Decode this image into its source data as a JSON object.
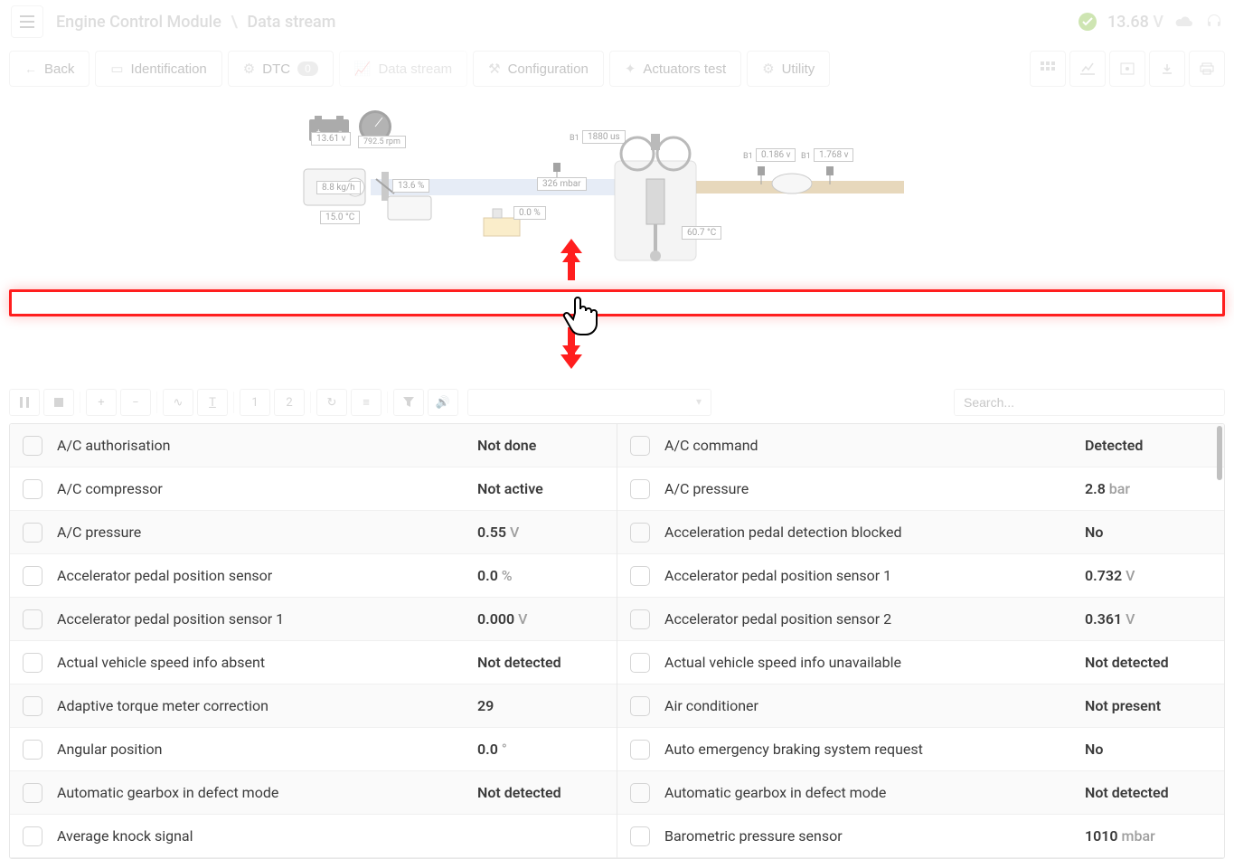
{
  "header": {
    "breadcrumb_main": "Engine Control Module",
    "breadcrumb_sub": "Data stream",
    "voltage_value": "13.68",
    "voltage_unit": "V"
  },
  "nav": {
    "back": "Back",
    "identification": "Identification",
    "dtc": "DTC",
    "dtc_count": "0",
    "data_stream": "Data stream",
    "configuration": "Configuration",
    "actuators": "Actuators test",
    "utility": "Utility"
  },
  "diagram": {
    "battery_v": "13.61 v",
    "rpm": "792.5 rpm",
    "maf": "8.8 kg/h",
    "throttle": "13.6 %",
    "iat": "15.0 °C",
    "map": "326 mbar",
    "fuel_trim": "0.0 %",
    "inj_b1_prefix": "B1",
    "inj_time": "1880 us",
    "coolant": "60.7 °C",
    "o2_b1_prefix": "B1",
    "o2_1": "0.186 v",
    "o2_b1_2_prefix": "B1",
    "o2_2": "1.768 v"
  },
  "toolbar": {
    "search_placeholder": "Search...",
    "btn_1": "1",
    "btn_2": "2"
  },
  "table": {
    "left": [
      {
        "label": "A/C authorisation",
        "value": "Not done",
        "unit": ""
      },
      {
        "label": "A/C compressor",
        "value": "Not active",
        "unit": ""
      },
      {
        "label": "A/C pressure",
        "value": "0.55",
        "unit": "V"
      },
      {
        "label": "Accelerator pedal position sensor",
        "value": "0.0",
        "unit": "%"
      },
      {
        "label": "Accelerator pedal position sensor 1",
        "value": "0.000",
        "unit": "V"
      },
      {
        "label": "Actual vehicle speed info absent",
        "value": "Not detected",
        "unit": ""
      },
      {
        "label": "Adaptive torque meter correction",
        "value": "29",
        "unit": ""
      },
      {
        "label": "Angular position",
        "value": "0.0",
        "unit": "°"
      },
      {
        "label": "Automatic gearbox in defect mode",
        "value": "Not detected",
        "unit": ""
      },
      {
        "label": "Average knock signal",
        "value": "",
        "unit": ""
      }
    ],
    "right": [
      {
        "label": "A/C command",
        "value": "Detected",
        "unit": ""
      },
      {
        "label": "A/C pressure",
        "value": "2.8",
        "unit": "bar"
      },
      {
        "label": "Acceleration pedal detection blocked",
        "value": "No",
        "unit": ""
      },
      {
        "label": "Accelerator pedal position sensor 1",
        "value": "0.732",
        "unit": "V"
      },
      {
        "label": "Accelerator pedal position sensor 2",
        "value": "0.361",
        "unit": "V"
      },
      {
        "label": "Actual vehicle speed info unavailable",
        "value": "Not detected",
        "unit": ""
      },
      {
        "label": "Air conditioner",
        "value": "Not present",
        "unit": ""
      },
      {
        "label": "Auto emergency braking system request",
        "value": "No",
        "unit": ""
      },
      {
        "label": "Automatic gearbox in defect mode",
        "value": "Not detected",
        "unit": ""
      },
      {
        "label": "Barometric pressure sensor",
        "value": "1010",
        "unit": "mbar"
      }
    ]
  },
  "colors": {
    "highlight": "#ff1e1e",
    "intake": "#c8d4ea",
    "exhaust": "#c9a86a",
    "check": "#8bc34a"
  }
}
